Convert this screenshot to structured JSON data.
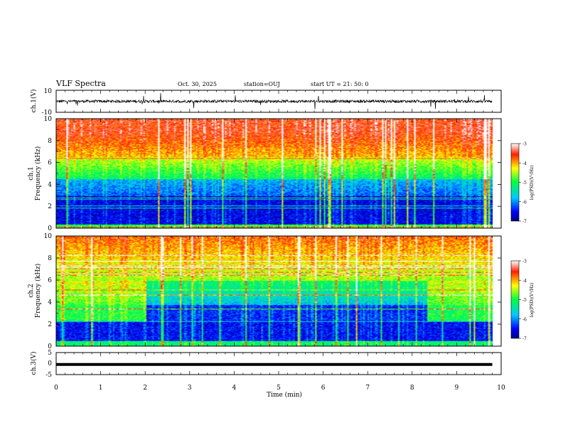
{
  "header": {
    "title": "VLF Spectra",
    "date": "Oct. 30, 2025",
    "station": "station=OUJ",
    "start": "start UT = 21: 50: 0"
  },
  "chart_data": [
    {
      "id": "ch1-waveform",
      "type": "line",
      "ylabel": "ch.1(V)",
      "ylim": [
        -10,
        10
      ],
      "yticks": [
        "10",
        "-10"
      ],
      "xlim": [
        0,
        10
      ],
      "series": [
        {
          "trace_level": 0,
          "noise_amplitude": 2.5,
          "color": "#000000"
        }
      ]
    },
    {
      "id": "ch1-spectrogram",
      "type": "heatmap",
      "ylabel": "ch.1\nFrequency (kHz)",
      "ylim": [
        0,
        10
      ],
      "yticks": [
        "0",
        "2",
        "4",
        "6",
        "8",
        "10"
      ],
      "xlim": [
        0,
        9.8
      ],
      "colorbar": {
        "label": "log(PSD)(V²/Hz)",
        "range": [
          -7,
          -3
        ],
        "ticks": [
          "-3",
          "-4",
          "-5",
          "-6",
          "-7"
        ]
      },
      "profile": {
        "low_band_khz": [
          0.4,
          3.0
        ],
        "green_band_khz": [
          4.5,
          6.5
        ],
        "red_above_khz": 7.5
      }
    },
    {
      "id": "ch2-spectrogram",
      "type": "heatmap",
      "ylabel": "ch.2\nFrequency (kHz)",
      "ylim": [
        0,
        10
      ],
      "yticks": [
        "0",
        "2",
        "4",
        "6",
        "8",
        "10"
      ],
      "xlim": [
        0,
        9.8
      ],
      "colorbar": {
        "label": "log(PSD)(V²/Hz)",
        "range": [
          -7,
          -3
        ],
        "ticks": [
          "-3",
          "-4",
          "-5",
          "-6",
          "-7"
        ]
      },
      "profile": {
        "green_band_khz": [
          2.3,
          3.8
        ],
        "green_band_time_min": [
          [
            0,
            2.0
          ],
          [
            8.3,
            9.8
          ]
        ]
      }
    },
    {
      "id": "ch3-waveform",
      "type": "line",
      "ylabel": "ch.3(V)",
      "ylim": [
        -5,
        5
      ],
      "yticks": [
        "5",
        "0",
        "-5"
      ],
      "xlim": [
        0,
        10
      ],
      "series": [
        {
          "trace_level": -0.4,
          "color": "#000000"
        }
      ]
    }
  ],
  "time_axis": {
    "label": "Time (min)",
    "ticks": [
      "0",
      "1",
      "2",
      "3",
      "4",
      "5",
      "6",
      "7",
      "8",
      "9",
      "10"
    ]
  }
}
